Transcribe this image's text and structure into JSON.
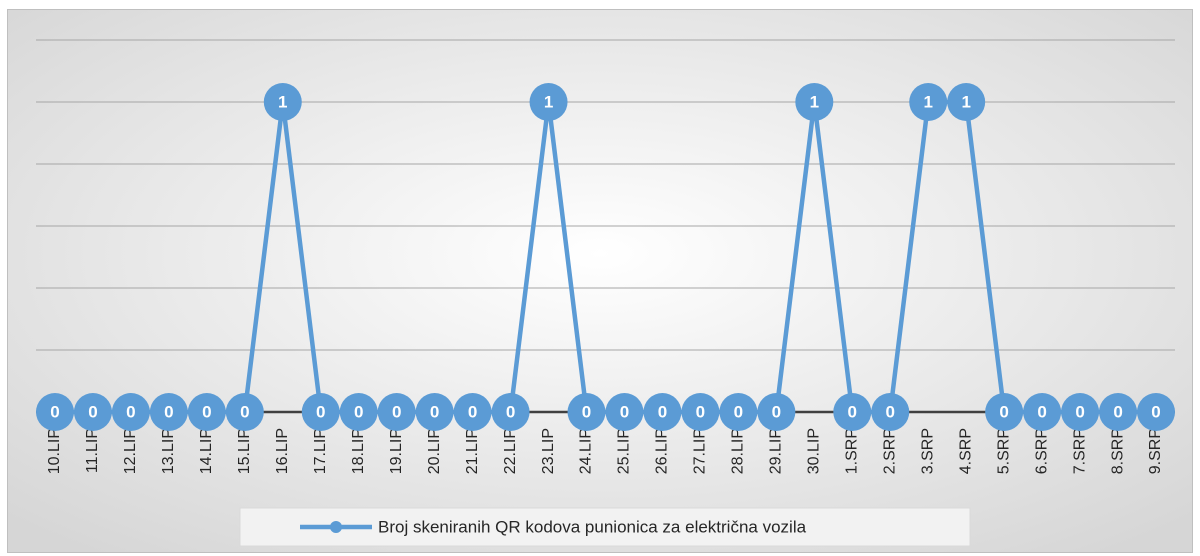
{
  "chart_data": {
    "type": "line",
    "categories": [
      "10.LIP",
      "11.LIP",
      "12.LIP",
      "13.LIP",
      "14.LIP",
      "15.LIP",
      "16.LIP",
      "17.LIP",
      "18.LIP",
      "19.LIP",
      "20.LIP",
      "21.LIP",
      "22.LIP",
      "23.LIP",
      "24.LIP",
      "25.LIP",
      "26.LIP",
      "27.LIP",
      "28.LIP",
      "29.LIP",
      "30.LIP",
      "1.SRP",
      "2.SRP",
      "3.SRP",
      "4.SRP",
      "5.SRP",
      "6.SRP",
      "7.SRP",
      "8.SRP",
      "9.SRP"
    ],
    "series": [
      {
        "name": "Broj skeniranih QR kodova punionica za električna vozila",
        "color": "#5b9bd5",
        "values": [
          0,
          0,
          0,
          0,
          0,
          0,
          1,
          0,
          0,
          0,
          0,
          0,
          0,
          1,
          0,
          0,
          0,
          0,
          0,
          0,
          1,
          0,
          0,
          1,
          1,
          0,
          0,
          0,
          0,
          0
        ]
      }
    ],
    "ylim": [
      0,
      1.2
    ],
    "yticks": [
      0,
      0.2,
      0.4,
      0.6,
      0.8,
      1,
      1.2
    ],
    "grid": true,
    "legend": "bottom"
  }
}
